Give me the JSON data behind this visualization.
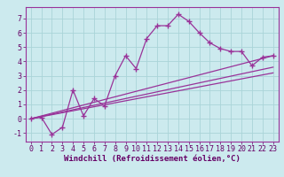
{
  "background_color": "#cceaee",
  "grid_color": "#aad4d8",
  "line_color": "#993399",
  "marker": "+",
  "markersize": 4,
  "markeredgewidth": 1.0,
  "linewidth": 0.9,
  "xlabel": "Windchill (Refroidissement éolien,°C)",
  "xlabel_fontsize": 6.5,
  "tick_fontsize": 6,
  "ylim": [
    -1.6,
    7.8
  ],
  "xlim": [
    -0.5,
    23.5
  ],
  "yticks": [
    -1,
    0,
    1,
    2,
    3,
    4,
    5,
    6,
    7
  ],
  "xticks": [
    0,
    1,
    2,
    3,
    4,
    5,
    6,
    7,
    8,
    9,
    10,
    11,
    12,
    13,
    14,
    15,
    16,
    17,
    18,
    19,
    20,
    21,
    22,
    23
  ],
  "series": [
    {
      "x": [
        0,
        1,
        2,
        3,
        4,
        5,
        6,
        7,
        8,
        9,
        10,
        11,
        12,
        13,
        14,
        15,
        16,
        17,
        18,
        19,
        20,
        21,
        22,
        23
      ],
      "y": [
        0.0,
        0.1,
        -1.1,
        -0.6,
        2.0,
        0.2,
        1.4,
        0.9,
        3.0,
        4.4,
        3.5,
        5.6,
        6.5,
        6.5,
        7.3,
        6.8,
        6.0,
        5.3,
        4.9,
        4.7,
        4.7,
        3.7,
        4.3,
        4.4
      ],
      "has_markers": true
    },
    {
      "x": [
        0,
        23
      ],
      "y": [
        0.0,
        4.4
      ],
      "has_markers": false
    },
    {
      "x": [
        0,
        23
      ],
      "y": [
        0.0,
        3.6
      ],
      "has_markers": false
    },
    {
      "x": [
        0,
        23
      ],
      "y": [
        0.0,
        3.2
      ],
      "has_markers": false
    }
  ]
}
